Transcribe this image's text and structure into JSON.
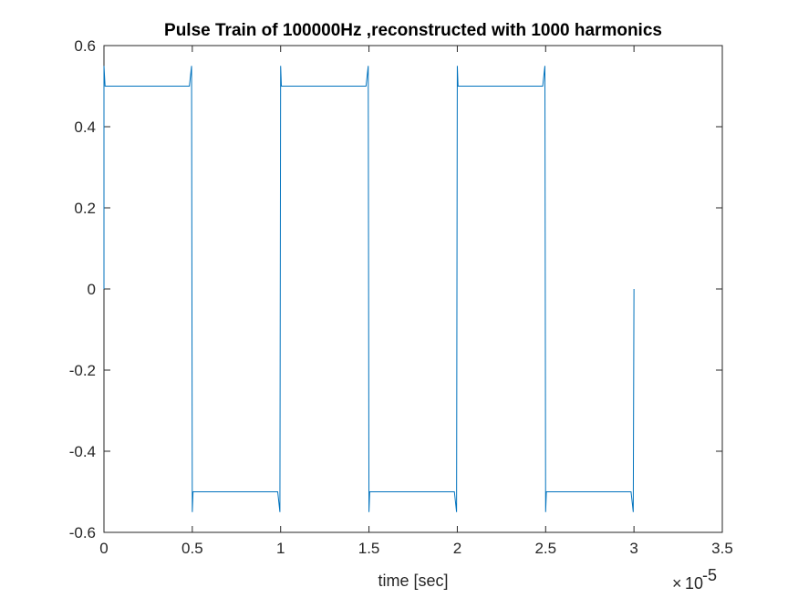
{
  "chart_data": {
    "type": "line",
    "title": "Pulse Train of 100000Hz ,reconstructed with 1000 harmonics",
    "xlabel": "time [sec]",
    "ylabel": "",
    "x_exponent_label": {
      "base": "10",
      "exponent": "-5"
    },
    "xlim": [
      0,
      3.5e-05
    ],
    "ylim": [
      -0.6,
      0.6
    ],
    "x_scale_factor": 1e-05,
    "x_ticks": [
      0,
      0.5,
      1,
      1.5,
      2,
      2.5,
      3,
      3.5
    ],
    "x_tick_labels": [
      "0",
      "0.5",
      "1",
      "1.5",
      "2",
      "2.5",
      "3",
      "3.5"
    ],
    "y_ticks": [
      -0.6,
      -0.4,
      -0.2,
      0,
      0.2,
      0.4,
      0.6
    ],
    "y_tick_labels": [
      "-0.6",
      "-0.4",
      "-0.2",
      "0",
      "0.2",
      "0.4",
      "0.6"
    ],
    "grid": false,
    "series": [
      {
        "color": "#0072bd",
        "amplitude": 0.5,
        "overshoot_peak": 0.55,
        "transitions": [
          0,
          5e-06,
          1e-05,
          1.5e-05,
          2e-05,
          2.5e-05,
          3e-05
        ],
        "start_value": 0,
        "end_value": 0,
        "x_start": 0,
        "x_end": 3e-05
      }
    ]
  }
}
